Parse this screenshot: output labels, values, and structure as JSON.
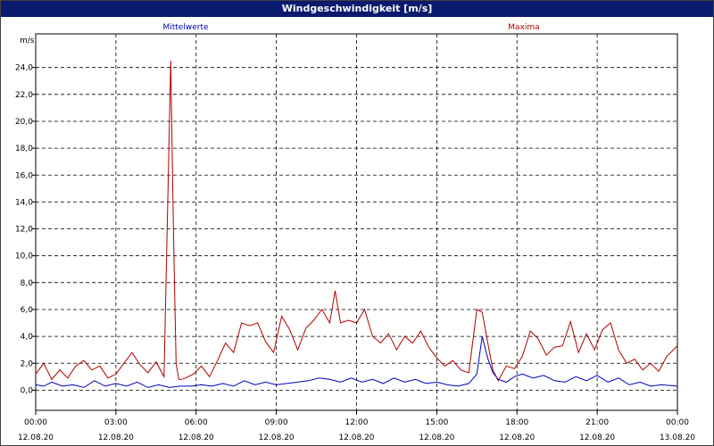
{
  "window": {
    "title": "Windgeschwindigkeit [m/s]"
  },
  "chart_data": {
    "type": "line",
    "title": "Windgeschwindigkeit [m/s]",
    "ylabel": "m/s",
    "xlabel": "",
    "ylim": [
      -1.5,
      26.5
    ],
    "xlim": [
      0,
      24
    ],
    "grid": true,
    "legend_placement": "top",
    "y_ticks": [
      "0,0",
      "2,0",
      "4,0",
      "6,0",
      "8,0",
      "10,0",
      "12,0",
      "14,0",
      "16,0",
      "18,0",
      "20,0",
      "22,0",
      "24,0"
    ],
    "x_ticks": [
      {
        "time": "00:00",
        "date": "12.08.20"
      },
      {
        "time": "03:00",
        "date": "12.08.20"
      },
      {
        "time": "06:00",
        "date": "12.08.20"
      },
      {
        "time": "09:00",
        "date": "12.08.20"
      },
      {
        "time": "12:00",
        "date": "12.08.20"
      },
      {
        "time": "15:00",
        "date": "12.08.20"
      },
      {
        "time": "18:00",
        "date": "12.08.20"
      },
      {
        "time": "21:00",
        "date": "12.08.20"
      },
      {
        "time": "00:00",
        "date": "13.08.20"
      }
    ],
    "series": [
      {
        "name": "Mittelwerte",
        "color": "#0000c0",
        "x": [
          0,
          0.3,
          0.6,
          1,
          1.4,
          1.8,
          2.2,
          2.6,
          3,
          3.4,
          3.8,
          4.2,
          4.6,
          5,
          5.4,
          5.8,
          6.2,
          6.6,
          7,
          7.4,
          7.8,
          8.2,
          8.6,
          9,
          9.4,
          9.8,
          10.2,
          10.6,
          11,
          11.4,
          11.8,
          12.2,
          12.6,
          13,
          13.4,
          13.8,
          14.2,
          14.6,
          15,
          15.4,
          15.8,
          16.2,
          16.5,
          16.7,
          16.9,
          17.1,
          17.3,
          17.6,
          17.9,
          18.2,
          18.6,
          19,
          19.4,
          19.8,
          20.2,
          20.6,
          21,
          21.4,
          21.8,
          22.2,
          22.6,
          23,
          23.4,
          24
        ],
        "values": [
          0.4,
          0.3,
          0.6,
          0.3,
          0.4,
          0.2,
          0.7,
          0.3,
          0.5,
          0.3,
          0.6,
          0.2,
          0.4,
          0.2,
          0.3,
          0.3,
          0.4,
          0.3,
          0.5,
          0.3,
          0.7,
          0.4,
          0.6,
          0.4,
          0.5,
          0.6,
          0.7,
          0.9,
          0.8,
          0.6,
          0.9,
          0.6,
          0.8,
          0.5,
          0.9,
          0.6,
          0.8,
          0.5,
          0.6,
          0.4,
          0.3,
          0.5,
          1.2,
          4.0,
          2.4,
          1.3,
          0.8,
          0.6,
          1.0,
          1.2,
          0.9,
          1.1,
          0.7,
          0.6,
          1.0,
          0.7,
          1.1,
          0.6,
          0.9,
          0.4,
          0.6,
          0.3,
          0.4,
          0.3
        ]
      },
      {
        "name": "Maxima",
        "color": "#b00000",
        "x": [
          0,
          0.3,
          0.6,
          0.9,
          1.2,
          1.5,
          1.8,
          2.1,
          2.4,
          2.7,
          3,
          3.3,
          3.6,
          3.9,
          4.2,
          4.5,
          4.8,
          5.05,
          5.15,
          5.25,
          5.35,
          5.45,
          5.6,
          5.9,
          6.2,
          6.5,
          6.8,
          7.1,
          7.4,
          7.7,
          8,
          8.3,
          8.6,
          8.9,
          9.2,
          9.5,
          9.8,
          10.1,
          10.4,
          10.7,
          11,
          11.2,
          11.4,
          11.7,
          12,
          12.3,
          12.6,
          12.9,
          13.2,
          13.5,
          13.8,
          14.1,
          14.4,
          14.7,
          15,
          15.3,
          15.6,
          15.9,
          16.2,
          16.5,
          16.7,
          16.9,
          17.1,
          17.3,
          17.6,
          17.9,
          18.2,
          18.5,
          18.8,
          19.1,
          19.4,
          19.7,
          20,
          20.3,
          20.6,
          20.9,
          21.2,
          21.5,
          21.8,
          22.1,
          22.4,
          22.7,
          23,
          23.3,
          23.6,
          24
        ],
        "values": [
          1.2,
          2.0,
          0.8,
          1.5,
          0.9,
          1.8,
          2.2,
          1.5,
          1.8,
          0.9,
          1.2,
          2.0,
          2.8,
          1.9,
          1.3,
          2.1,
          1.0,
          24.5,
          12.0,
          2.0,
          0.8,
          0.8,
          0.9,
          1.2,
          1.8,
          1.0,
          2.2,
          3.5,
          2.8,
          5.0,
          4.8,
          5.0,
          3.6,
          2.8,
          5.5,
          4.5,
          3.0,
          4.6,
          5.2,
          6.0,
          5.0,
          7.4,
          5.0,
          5.2,
          5.0,
          6.0,
          4.0,
          3.5,
          4.2,
          3.0,
          4.0,
          3.5,
          4.4,
          3.2,
          2.4,
          1.8,
          2.2,
          1.5,
          1.3,
          6.0,
          5.8,
          3.6,
          1.5,
          0.7,
          1.8,
          1.6,
          2.5,
          4.4,
          3.8,
          2.6,
          3.2,
          3.3,
          5.1,
          2.8,
          4.2,
          3.0,
          4.5,
          5.0,
          3.0,
          2.0,
          2.3,
          1.5,
          2.0,
          1.4,
          2.5,
          3.3
        ]
      }
    ]
  }
}
